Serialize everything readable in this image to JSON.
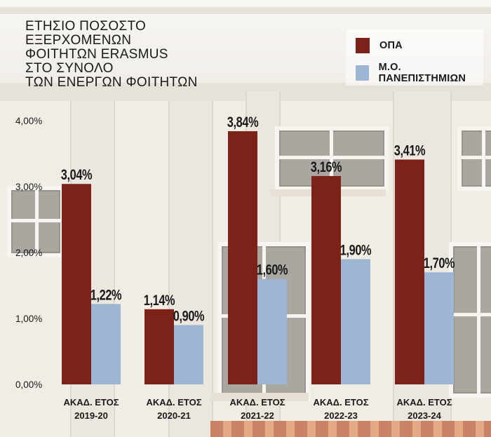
{
  "chart_data": {
    "type": "bar",
    "title_lines": [
      "ΕΤΗΣΙΟ ΠΟΣΟΣΤΟ",
      "ΕΞΕΡΧΟΜΕΝΩΝ",
      "ΦΟΙΤΗΤΩΝ ERASMUS",
      "ΣΤΟ ΣΥΝΟΛΟ",
      "ΤΩΝ ΕΝΕΡΓΩΝ ΦΟΙΤΗΤΩΝ"
    ],
    "categories": [
      [
        "ΑΚΑΔ. ΕΤΟΣ",
        "2019-20"
      ],
      [
        "ΑΚΑΔ. ΕΤΟΣ",
        "2020-21"
      ],
      [
        "ΑΚΑΔ. ΕΤΟΣ",
        "2021-22"
      ],
      [
        "ΑΚΑΔ. ΕΤΟΣ",
        "2022-23"
      ],
      [
        "ΑΚΑΔ. ΕΤΟΣ",
        "2023-24"
      ]
    ],
    "series": [
      {
        "name": "ΟΠΑ",
        "color": "#7d2218",
        "values": [
          3.04,
          1.14,
          3.84,
          3.16,
          3.41
        ],
        "labels": [
          "3,04%",
          "1,14%",
          "3,84%",
          "3,16%",
          "3,41%"
        ]
      },
      {
        "name": "Μ.Ο. ΠΑΝΕΠΙΣΤΗΜΙΩΝ",
        "color": "#9db6d4",
        "values": [
          1.22,
          0.9,
          1.6,
          1.9,
          1.7
        ],
        "labels": [
          "1,22%",
          "0,90%",
          "1,60%",
          "1,90%",
          "1,70%"
        ]
      }
    ],
    "y_ticks": [
      0,
      1,
      2,
      3,
      4
    ],
    "y_tick_labels": [
      "0,00%",
      "1,00%",
      "2,00%",
      "3,00%",
      "4,00%"
    ],
    "ylim": [
      0,
      4
    ],
    "legend_position": "top-right",
    "grid": false
  }
}
